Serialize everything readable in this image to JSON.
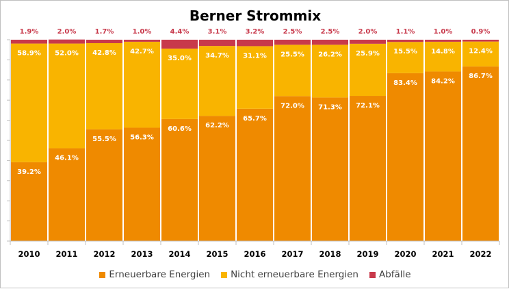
{
  "chart_data": {
    "type": "bar",
    "stacked": true,
    "title": "Berner Strommix",
    "categories": [
      "2010",
      "2011",
      "2012",
      "2013",
      "2014",
      "2015",
      "2016",
      "2017",
      "2018",
      "2019",
      "2020",
      "2021",
      "2022"
    ],
    "series": [
      {
        "name": "Erneuerbare Energien",
        "color": "#ef8a00",
        "values": [
          39.2,
          46.1,
          55.5,
          56.3,
          60.6,
          62.2,
          65.7,
          72.0,
          71.3,
          72.1,
          83.4,
          84.2,
          86.7
        ],
        "labels": [
          "39.2%",
          "46.1%",
          "55.5%",
          "56.3%",
          "60.6%",
          "62.2%",
          "65.7%",
          "72.0%",
          "71.3%",
          "72.1%",
          "83.4%",
          "84.2%",
          "86.7%"
        ]
      },
      {
        "name": "Nicht erneuerbare Energien",
        "color": "#f9b400",
        "values": [
          58.9,
          52.0,
          42.8,
          42.7,
          35.0,
          34.7,
          31.1,
          25.5,
          26.2,
          25.9,
          15.5,
          14.8,
          12.4
        ],
        "labels": [
          "58.9%",
          "52.0%",
          "42.8%",
          "42.7%",
          "35.0%",
          "34.7%",
          "31.1%",
          "25.5%",
          "26.2%",
          "25.9%",
          "15.5%",
          "14.8%",
          "12.4%"
        ]
      },
      {
        "name": "Abfälle",
        "color": "#c8394b",
        "values": [
          1.9,
          2.0,
          1.7,
          1.0,
          4.4,
          3.1,
          3.2,
          2.5,
          2.5,
          2.0,
          1.1,
          1.0,
          0.9
        ],
        "labels": [
          "1.9%",
          "2.0%",
          "1.7%",
          "1.0%",
          "4.4%",
          "3.1%",
          "3.2%",
          "2.5%",
          "2.5%",
          "2.0%",
          "1.1%",
          "1.0%",
          "0.9%"
        ]
      }
    ],
    "ylim": [
      0,
      100
    ],
    "legend": "bottom"
  }
}
